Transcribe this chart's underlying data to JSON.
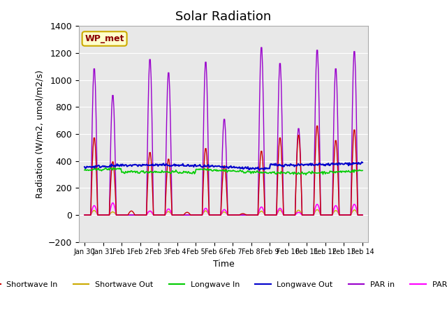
{
  "title": "Solar Radiation",
  "ylabel": "Radiation (W/m2, umol/m2/s)",
  "xlabel": "Time",
  "ylim": [
    -200,
    1400
  ],
  "yticks": [
    -200,
    0,
    200,
    400,
    600,
    800,
    1000,
    1200,
    1400
  ],
  "annotation": "WP_met",
  "bg_color": "#e8e8e8",
  "line_colors": {
    "sw_in": "#cc0000",
    "sw_out": "#ccaa00",
    "lw_in": "#00cc00",
    "lw_out": "#0000cc",
    "par_in": "#9900cc",
    "par_out": "#ff00ff"
  },
  "legend_labels": [
    "Shortwave In",
    "Shortwave Out",
    "Longwave In",
    "Longwave Out",
    "PAR in",
    "PAR out"
  ],
  "sw_in_peaks": [
    580,
    400,
    30,
    470,
    420,
    20,
    500,
    370,
    10,
    480,
    580,
    600,
    670,
    560,
    640
  ],
  "par_in_peaks": [
    1100,
    900,
    0,
    1170,
    1070,
    0,
    1150,
    720,
    0,
    1260,
    1140,
    650,
    1240,
    1100,
    1230
  ],
  "par_out_peaks": [
    70,
    90,
    0,
    30,
    45,
    0,
    50,
    40,
    0,
    60,
    50,
    20,
    80,
    70,
    80
  ],
  "n_days": 15
}
